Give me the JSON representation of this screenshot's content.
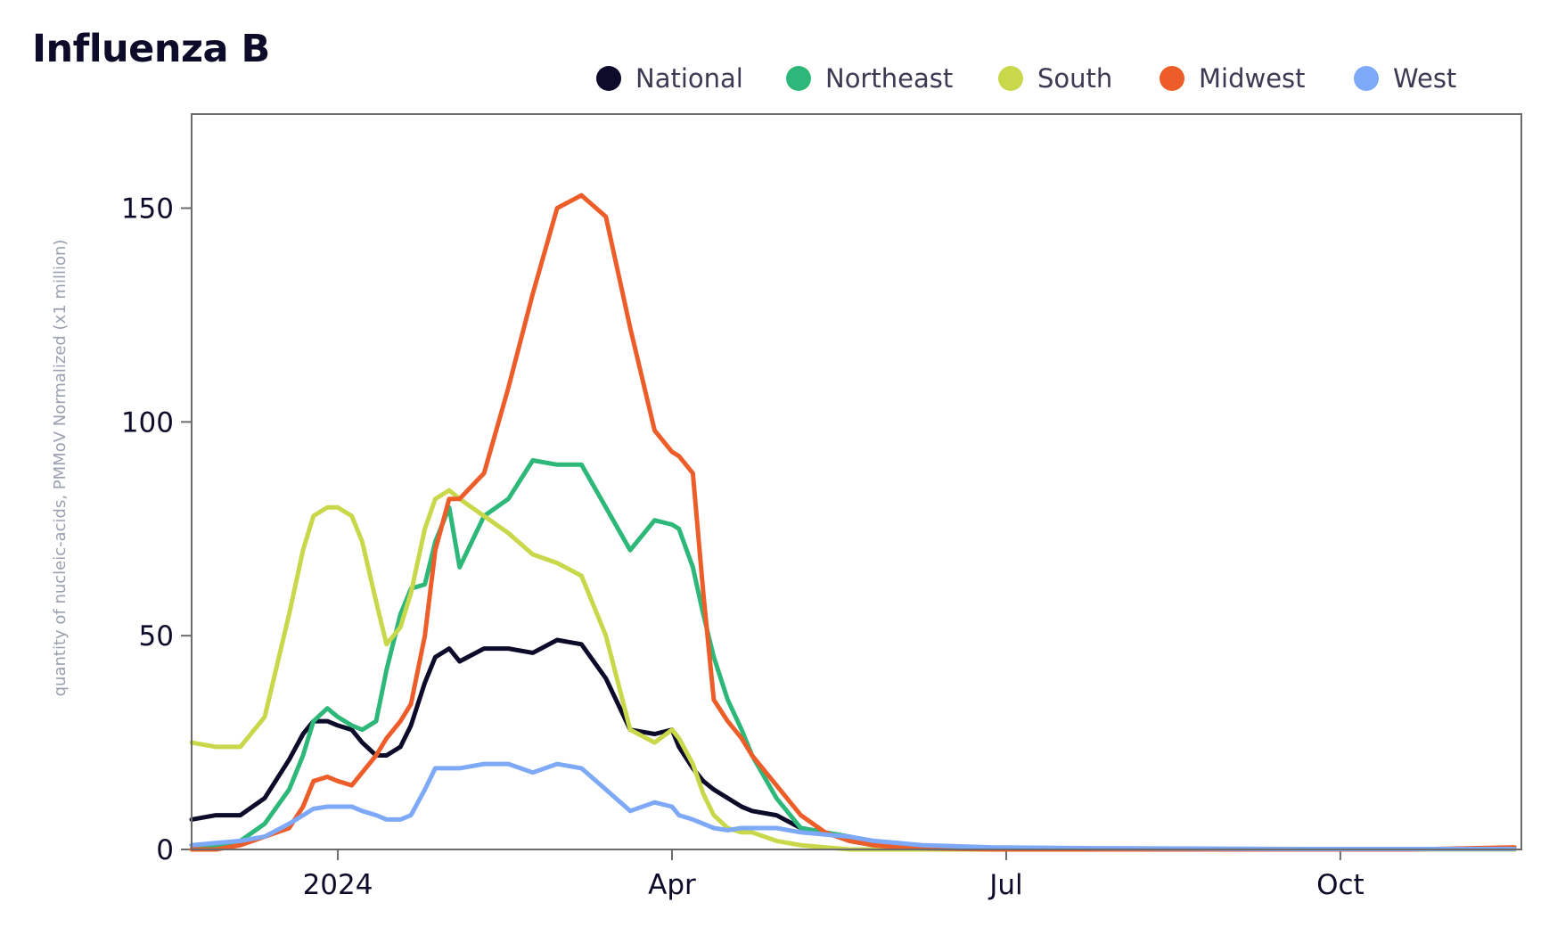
{
  "chart_data": {
    "type": "line",
    "title": "Influenza B",
    "xlabel": "",
    "ylabel": "quantity of nucleic-acids, PMMoV Normalized (x1 million)",
    "ylim": [
      0,
      172
    ],
    "x_unit": "days since 2023-11-01",
    "xlim": [
      0,
      382
    ],
    "x_ticks": [
      {
        "label": "2024",
        "value": 42
      },
      {
        "label": "Apr",
        "value": 138
      },
      {
        "label": "Jul",
        "value": 234
      },
      {
        "label": "Oct",
        "value": 330
      }
    ],
    "y_ticks": [
      0,
      50,
      100,
      150
    ],
    "legend_position": "top-right",
    "grid": false,
    "x": [
      0,
      7,
      14,
      21,
      28,
      32,
      35,
      39,
      42,
      46,
      49,
      53,
      56,
      60,
      63,
      67,
      70,
      74,
      77,
      84,
      91,
      98,
      105,
      112,
      119,
      126,
      133,
      138,
      140,
      144,
      147,
      150,
      154,
      158,
      161,
      168,
      175,
      182,
      189,
      196,
      203,
      210,
      230,
      260,
      290,
      320,
      350,
      380
    ],
    "series": [
      {
        "name": "National",
        "color": "#0d0b2a",
        "values": [
          7,
          8,
          8,
          12,
          21,
          27,
          30,
          30,
          29,
          28,
          25,
          22,
          22,
          24,
          29,
          39,
          45,
          47,
          44,
          47,
          47,
          46,
          49,
          48,
          40,
          28,
          27,
          28,
          24,
          19,
          16,
          14,
          12,
          10,
          9,
          8,
          5,
          4,
          2,
          1,
          0.5,
          0.3,
          0,
          0,
          0,
          0,
          0,
          0
        ]
      },
      {
        "name": "Northeast",
        "color": "#2db87a",
        "values": [
          1,
          1,
          2,
          6,
          14,
          22,
          30,
          33,
          31,
          29,
          28,
          30,
          42,
          55,
          61,
          62,
          72,
          80,
          66,
          78,
          82,
          91,
          90,
          90,
          80,
          70,
          77,
          76,
          75,
          66,
          55,
          45,
          35,
          28,
          22,
          12,
          5,
          4,
          3,
          1,
          0.5,
          0,
          0,
          0,
          0,
          0,
          0,
          0
        ]
      },
      {
        "name": "South",
        "color": "#c8d84a",
        "values": [
          25,
          24,
          24,
          31,
          55,
          70,
          78,
          80,
          80,
          78,
          72,
          58,
          48,
          52,
          60,
          75,
          82,
          84,
          82,
          78,
          74,
          69,
          67,
          64,
          50,
          28,
          25,
          28,
          26,
          20,
          13,
          8,
          5,
          4,
          4,
          2,
          1,
          0.5,
          0,
          0,
          0,
          0,
          0,
          0,
          0,
          0,
          0,
          0
        ]
      },
      {
        "name": "Midwest",
        "color": "#ec5d2a",
        "values": [
          0,
          0,
          1,
          3,
          5,
          10,
          16,
          17,
          16,
          15,
          18,
          22,
          26,
          30,
          34,
          50,
          70,
          82,
          82,
          88,
          108,
          130,
          150,
          153,
          148,
          122,
          98,
          93,
          92,
          88,
          60,
          35,
          30,
          26,
          22,
          15,
          8,
          4,
          2,
          1,
          0.5,
          0.3,
          0,
          0,
          0,
          0,
          0,
          0.5
        ]
      },
      {
        "name": "West",
        "color": "#7ea8f8",
        "values": [
          1,
          1.5,
          2,
          3,
          6,
          8,
          9.5,
          10,
          10,
          10,
          9,
          8,
          7,
          7,
          8,
          14,
          19,
          19,
          19,
          20,
          20,
          18,
          20,
          19,
          14,
          9,
          11,
          10,
          8,
          7,
          6,
          5,
          4.5,
          5,
          5,
          5,
          4,
          3.5,
          3,
          2,
          1.5,
          1,
          0.5,
          0.3,
          0.2,
          0.1,
          0.1,
          0.1
        ]
      }
    ]
  }
}
